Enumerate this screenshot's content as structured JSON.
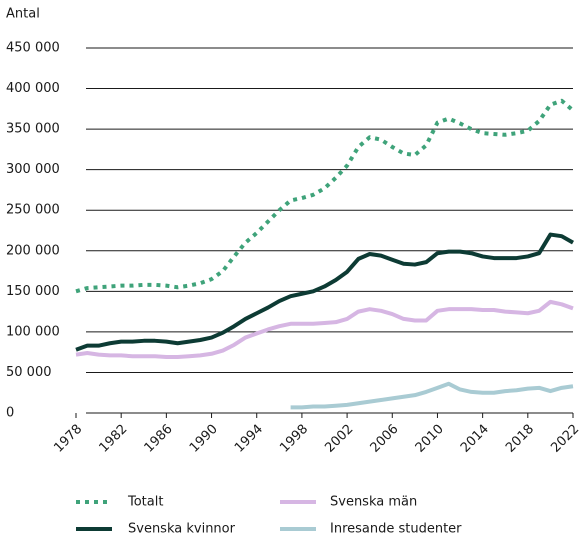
{
  "chart_data": {
    "type": "line",
    "y_label": "Antal",
    "x": [
      1978,
      1979,
      1980,
      1981,
      1982,
      1983,
      1984,
      1985,
      1986,
      1987,
      1988,
      1989,
      1990,
      1991,
      1992,
      1993,
      1994,
      1995,
      1996,
      1997,
      1998,
      1999,
      2000,
      2001,
      2002,
      2003,
      2004,
      2005,
      2006,
      2007,
      2008,
      2009,
      2010,
      2011,
      2012,
      2013,
      2014,
      2015,
      2016,
      2017,
      2018,
      2019,
      2020,
      2021,
      2022
    ],
    "xlim": [
      1978,
      2022
    ],
    "xticks": [
      1978,
      1982,
      1986,
      1990,
      1994,
      1998,
      2002,
      2006,
      2010,
      2014,
      2018,
      2022
    ],
    "ylim": [
      0,
      450000
    ],
    "yticks": [
      0,
      {
        "value": 50000,
        "label": "50 000"
      },
      {
        "value": 100000,
        "label": "100 000"
      },
      {
        "value": 150000,
        "label": "150 000"
      },
      {
        "value": 200000,
        "label": "200 000"
      },
      {
        "value": 250000,
        "label": "250 000"
      },
      {
        "value": 300000,
        "label": "300 000"
      },
      {
        "value": 350000,
        "label": "350 000"
      },
      {
        "value": 400000,
        "label": "400 000"
      },
      {
        "value": 450000,
        "label": "450 000"
      }
    ],
    "grid": true,
    "series": [
      {
        "name": "Totalt",
        "color": "#3fa37a",
        "line_style": "dotted",
        "values": [
          150000,
          154000,
          155000,
          156000,
          157000,
          157000,
          158000,
          158000,
          157000,
          155000,
          157000,
          160000,
          165000,
          175000,
          193000,
          210000,
          222000,
          236000,
          250000,
          262000,
          265000,
          269000,
          277000,
          290000,
          305000,
          328000,
          340000,
          337000,
          328000,
          320000,
          318000,
          330000,
          358000,
          363000,
          357000,
          350000,
          345000,
          344000,
          343000,
          345000,
          348000,
          360000,
          380000,
          385000,
          373000
        ]
      },
      {
        "name": "Svenska män",
        "color": "#d6b6e3",
        "line_style": "solid",
        "values": [
          72000,
          74000,
          72000,
          71000,
          71000,
          70000,
          70000,
          70000,
          69000,
          69000,
          70000,
          71000,
          73000,
          77000,
          84000,
          93000,
          98000,
          103000,
          107000,
          110000,
          110000,
          110000,
          111000,
          112000,
          116000,
          125000,
          128000,
          126000,
          122000,
          116000,
          114000,
          114000,
          126000,
          128000,
          128000,
          128000,
          127000,
          127000,
          125000,
          124000,
          123000,
          126000,
          137000,
          134000,
          129000
        ]
      },
      {
        "name": "Svenska kvinnor",
        "color": "#0d3b34",
        "line_style": "solid",
        "values": [
          78000,
          83000,
          83000,
          86000,
          88000,
          88000,
          89000,
          89000,
          88000,
          86000,
          88000,
          90000,
          93000,
          99000,
          107000,
          116000,
          123000,
          130000,
          138000,
          144000,
          147000,
          150000,
          156000,
          164000,
          174000,
          190000,
          196000,
          194000,
          189000,
          184000,
          183000,
          186000,
          197000,
          199000,
          199000,
          197000,
          193000,
          191000,
          191000,
          191000,
          193000,
          197000,
          220000,
          218000,
          210000
        ]
      },
      {
        "name": "Inresande studenter",
        "color": "#a9cbd3",
        "line_style": "solid",
        "values": [
          null,
          null,
          null,
          null,
          null,
          null,
          null,
          null,
          null,
          null,
          null,
          null,
          null,
          null,
          null,
          null,
          null,
          null,
          null,
          7000,
          7000,
          8000,
          8000,
          9000,
          10000,
          12000,
          14000,
          16000,
          18000,
          20000,
          22000,
          26000,
          31000,
          36000,
          29000,
          26000,
          25000,
          25000,
          27000,
          28000,
          30000,
          31000,
          27000,
          31000,
          33000
        ]
      }
    ]
  }
}
